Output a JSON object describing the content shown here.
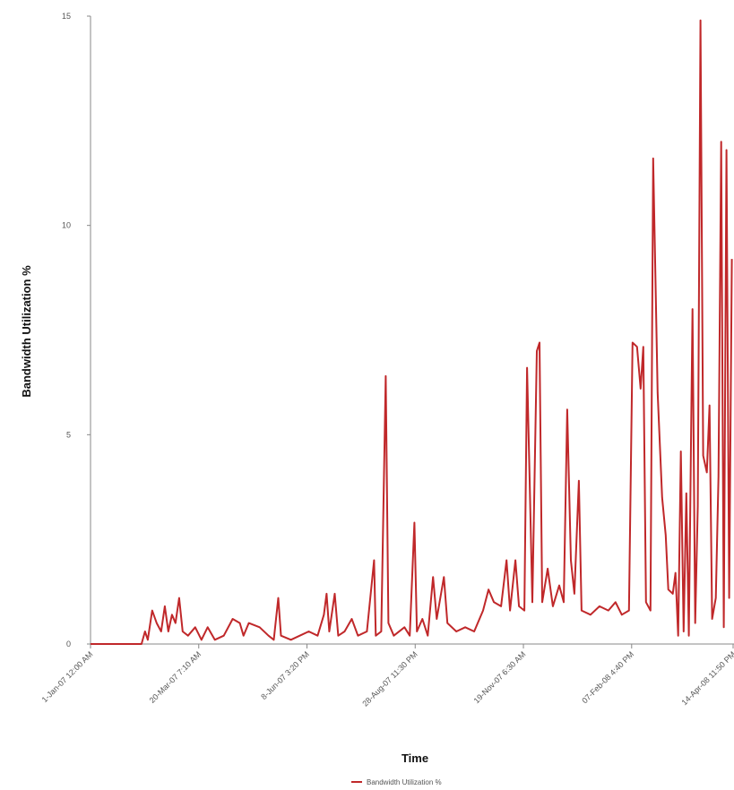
{
  "chart_data": {
    "type": "line",
    "xlabel": "Time",
    "ylabel": "Bandwidth Utilization %",
    "xlim": [
      0,
      475
    ],
    "ylim": [
      0,
      15
    ],
    "yticks": [
      0,
      5,
      10,
      15
    ],
    "xticks": [
      {
        "value": 0,
        "label": "1-Jan-07 12:00 AM"
      },
      {
        "value": 80,
        "label": "20-Mar-07 7:10 AM"
      },
      {
        "value": 160,
        "label": "8-Jun-07 3:20 PM"
      },
      {
        "value": 240,
        "label": "28-Aug-07 11:30 PM"
      },
      {
        "value": 320,
        "label": "19-Nov-07 6:30 AM"
      },
      {
        "value": 400,
        "label": "07-Feb-08 4:40 PM"
      },
      {
        "value": 475,
        "label": "14-Apr-08 11:50 PM"
      }
    ],
    "x": [
      0,
      37.7,
      40.3,
      42.3,
      45.6,
      48.9,
      52.2,
      54.9,
      57.5,
      60.2,
      62.8,
      65.5,
      68.1,
      72.1,
      77.4,
      82.0,
      86.6,
      91.9,
      98.5,
      105.1,
      110.4,
      113.1,
      117.0,
      125.0,
      131.6,
      135.5,
      138.8,
      140.8,
      148.1,
      154.7,
      161.3,
      167.9,
      172.5,
      174.5,
      176.5,
      180.5,
      183.1,
      187.8,
      193.1,
      197.7,
      204.3,
      209.6,
      210.9,
      214.9,
      218.2,
      220.2,
      224.2,
      232.1,
      236.0,
      239.4,
      241.3,
      245.3,
      249.3,
      253.2,
      255.9,
      261.2,
      263.8,
      270.4,
      277.0,
      283.6,
      290.2,
      294.2,
      298.2,
      303.5,
      307.5,
      310.1,
      314.1,
      316.7,
      320.7,
      322.7,
      324.6,
      326.6,
      329.9,
      331.9,
      333.9,
      337.9,
      341.8,
      346.5,
      349.8,
      352.4,
      355.1,
      357.7,
      361.0,
      363.0,
      369.6,
      376.2,
      382.8,
      388.1,
      392.7,
      398.0,
      400.7,
      404.0,
      406.6,
      408.6,
      410.6,
      413.9,
      415.9,
      419.2,
      422.5,
      425.2,
      427.1,
      430.4,
      432.4,
      434.4,
      436.4,
      438.4,
      440.4,
      442.3,
      445.0,
      447.0,
      448.9,
      450.9,
      452.9,
      455.6,
      457.6,
      459.5,
      462.2,
      464.2,
      466.2,
      468.1,
      470.1,
      472.1,
      474.1
    ],
    "series": [
      {
        "name": "Bandwidth Utilization %",
        "color": "#c0282a",
        "values": [
          0,
          0,
          0.3,
          0.1,
          0.8,
          0.5,
          0.3,
          0.9,
          0.3,
          0.7,
          0.5,
          1.1,
          0.3,
          0.2,
          0.4,
          0.1,
          0.4,
          0.1,
          0.2,
          0.6,
          0.5,
          0.2,
          0.5,
          0.4,
          0.2,
          0.1,
          1.1,
          0.2,
          0.1,
          0.2,
          0.3,
          0.2,
          0.7,
          1.2,
          0.3,
          1.2,
          0.2,
          0.3,
          0.6,
          0.2,
          0.3,
          2.0,
          0.2,
          0.3,
          6.4,
          0.5,
          0.2,
          0.4,
          0.2,
          2.9,
          0.3,
          0.6,
          0.2,
          1.6,
          0.6,
          1.6,
          0.5,
          0.3,
          0.4,
          0.3,
          0.8,
          1.3,
          1.0,
          0.9,
          2.0,
          0.8,
          2.0,
          0.9,
          0.8,
          6.6,
          3.9,
          1.0,
          7.0,
          7.2,
          1.0,
          1.8,
          0.9,
          1.4,
          1.0,
          5.6,
          2.0,
          1.2,
          3.9,
          0.8,
          0.7,
          0.9,
          0.8,
          1.0,
          0.7,
          0.8,
          7.2,
          7.1,
          6.1,
          7.1,
          1.0,
          0.8,
          11.6,
          6.0,
          3.5,
          2.6,
          1.3,
          1.2,
          1.7,
          0.2,
          4.6,
          0.3,
          3.6,
          0.2,
          8.0,
          0.5,
          3.3,
          14.9,
          4.5,
          4.1,
          5.7,
          0.6,
          1.1,
          4.0,
          12.0,
          0.4,
          11.8,
          1.1,
          9.2
        ]
      }
    ]
  }
}
